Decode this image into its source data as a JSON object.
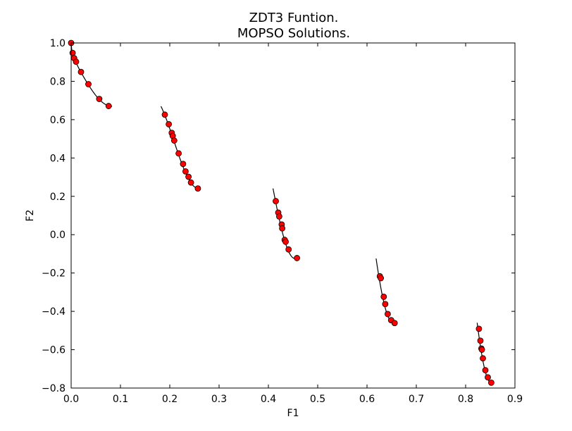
{
  "chart_data": {
    "type": "scatter",
    "title": "ZDT3 Funtion.",
    "subtitle": "MOPSO Solutions.",
    "xlabel": "F1",
    "ylabel": "F2",
    "xlim": [
      0.0,
      0.9
    ],
    "ylim": [
      -0.8,
      1.0
    ],
    "xticks": [
      "0.0",
      "0.1",
      "0.2",
      "0.3",
      "0.4",
      "0.5",
      "0.6",
      "0.7",
      "0.8",
      "0.9"
    ],
    "yticks": [
      "−0.8",
      "−0.6",
      "−0.4",
      "−0.2",
      "0.0",
      "0.2",
      "0.4",
      "0.6",
      "0.8",
      "1.0"
    ],
    "grid": false,
    "legend": "none",
    "colors": {
      "points": "#ff0000",
      "point_edge": "#000000",
      "front": "#000000"
    },
    "pareto_front": {
      "segments": [
        [
          0.0,
          0.083
        ],
        [
          0.1822,
          0.2578
        ],
        [
          0.4094,
          0.4539
        ],
        [
          0.6184,
          0.6525
        ],
        [
          0.8234,
          0.8518
        ]
      ]
    },
    "series": [
      {
        "x": [
          0.0,
          0.003,
          0.006,
          0.01,
          0.02,
          0.035,
          0.057,
          0.076,
          0.19,
          0.198,
          0.204,
          0.206,
          0.209,
          0.218,
          0.227,
          0.232,
          0.238,
          0.243,
          0.257,
          0.415,
          0.42,
          0.422,
          0.427,
          0.428,
          0.433,
          0.435,
          0.441,
          0.458,
          0.626,
          0.628,
          0.634,
          0.637,
          0.642,
          0.649,
          0.656,
          0.827,
          0.83,
          0.832,
          0.833,
          0.835,
          0.84,
          0.845,
          0.852
        ],
        "y": [
          1.0,
          0.948,
          0.921,
          0.902,
          0.849,
          0.785,
          0.708,
          0.671,
          0.626,
          0.576,
          0.531,
          0.515,
          0.491,
          0.424,
          0.369,
          0.33,
          0.302,
          0.272,
          0.241,
          0.175,
          0.115,
          0.095,
          0.053,
          0.033,
          -0.027,
          -0.037,
          -0.077,
          -0.122,
          -0.217,
          -0.227,
          -0.324,
          -0.362,
          -0.414,
          -0.446,
          -0.461,
          -0.491,
          -0.553,
          -0.594,
          -0.6,
          -0.645,
          -0.707,
          -0.744,
          -0.772
        ]
      }
    ]
  }
}
